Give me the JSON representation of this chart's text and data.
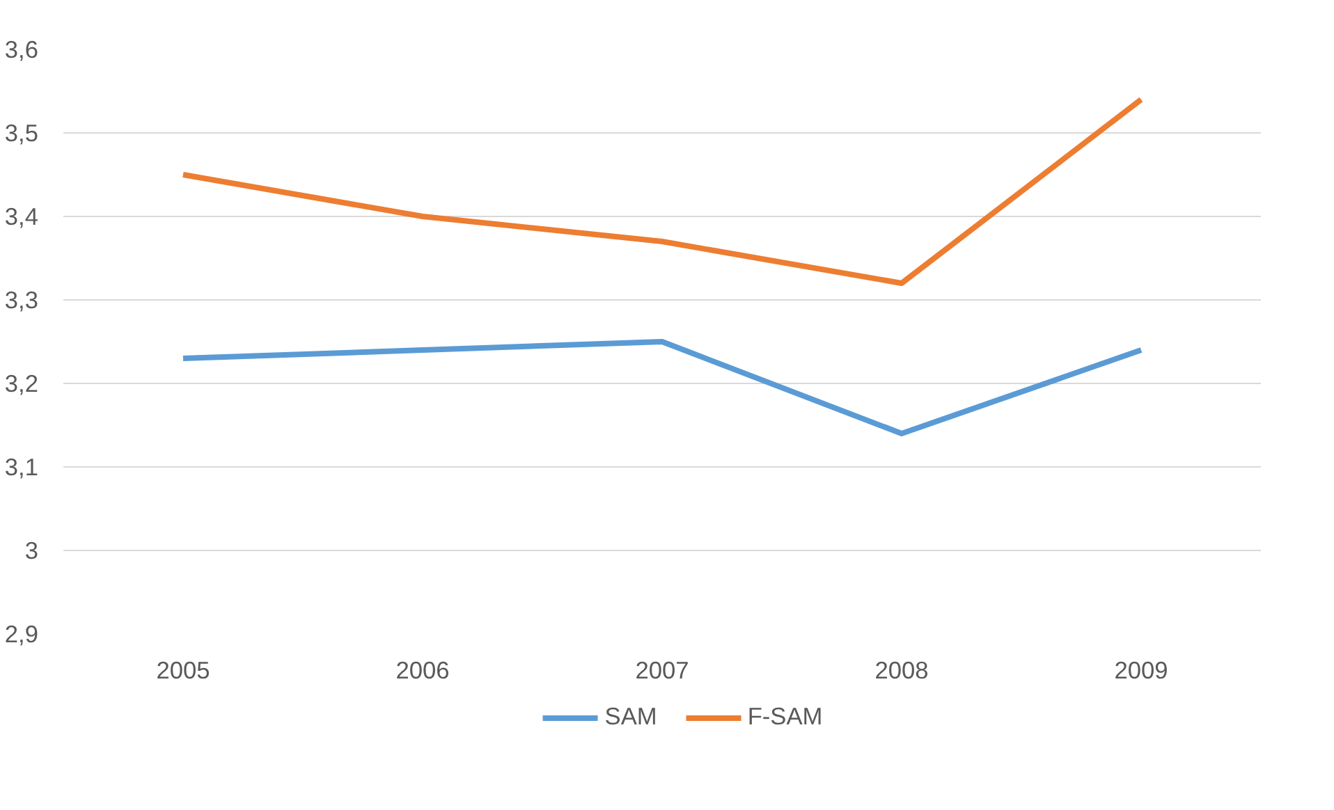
{
  "chart_data": {
    "type": "line",
    "categories": [
      "2005",
      "2006",
      "2007",
      "2008",
      "2009"
    ],
    "series": [
      {
        "name": "SAM",
        "color": "#5b9bd5",
        "values": [
          3.23,
          3.24,
          3.25,
          3.14,
          3.24
        ]
      },
      {
        "name": "F-SAM",
        "color": "#ed7d31",
        "values": [
          3.45,
          3.4,
          3.37,
          3.32,
          3.54
        ]
      }
    ],
    "ylim": [
      2.9,
      3.6
    ],
    "yticks": [
      {
        "value": 2.9,
        "label": "2,9"
      },
      3,
      {
        "value": 3.1,
        "label": "3,1"
      },
      {
        "value": 3.2,
        "label": "3,2"
      },
      {
        "value": 3.3,
        "label": "3,3"
      },
      {
        "value": 3.4,
        "label": "3,4"
      },
      {
        "value": 3.5,
        "label": "3,5"
      },
      {
        "value": 3.6,
        "label": "3,6"
      }
    ],
    "grid": "y",
    "legend": "bottom",
    "marker": "none",
    "line_style": "solid"
  }
}
